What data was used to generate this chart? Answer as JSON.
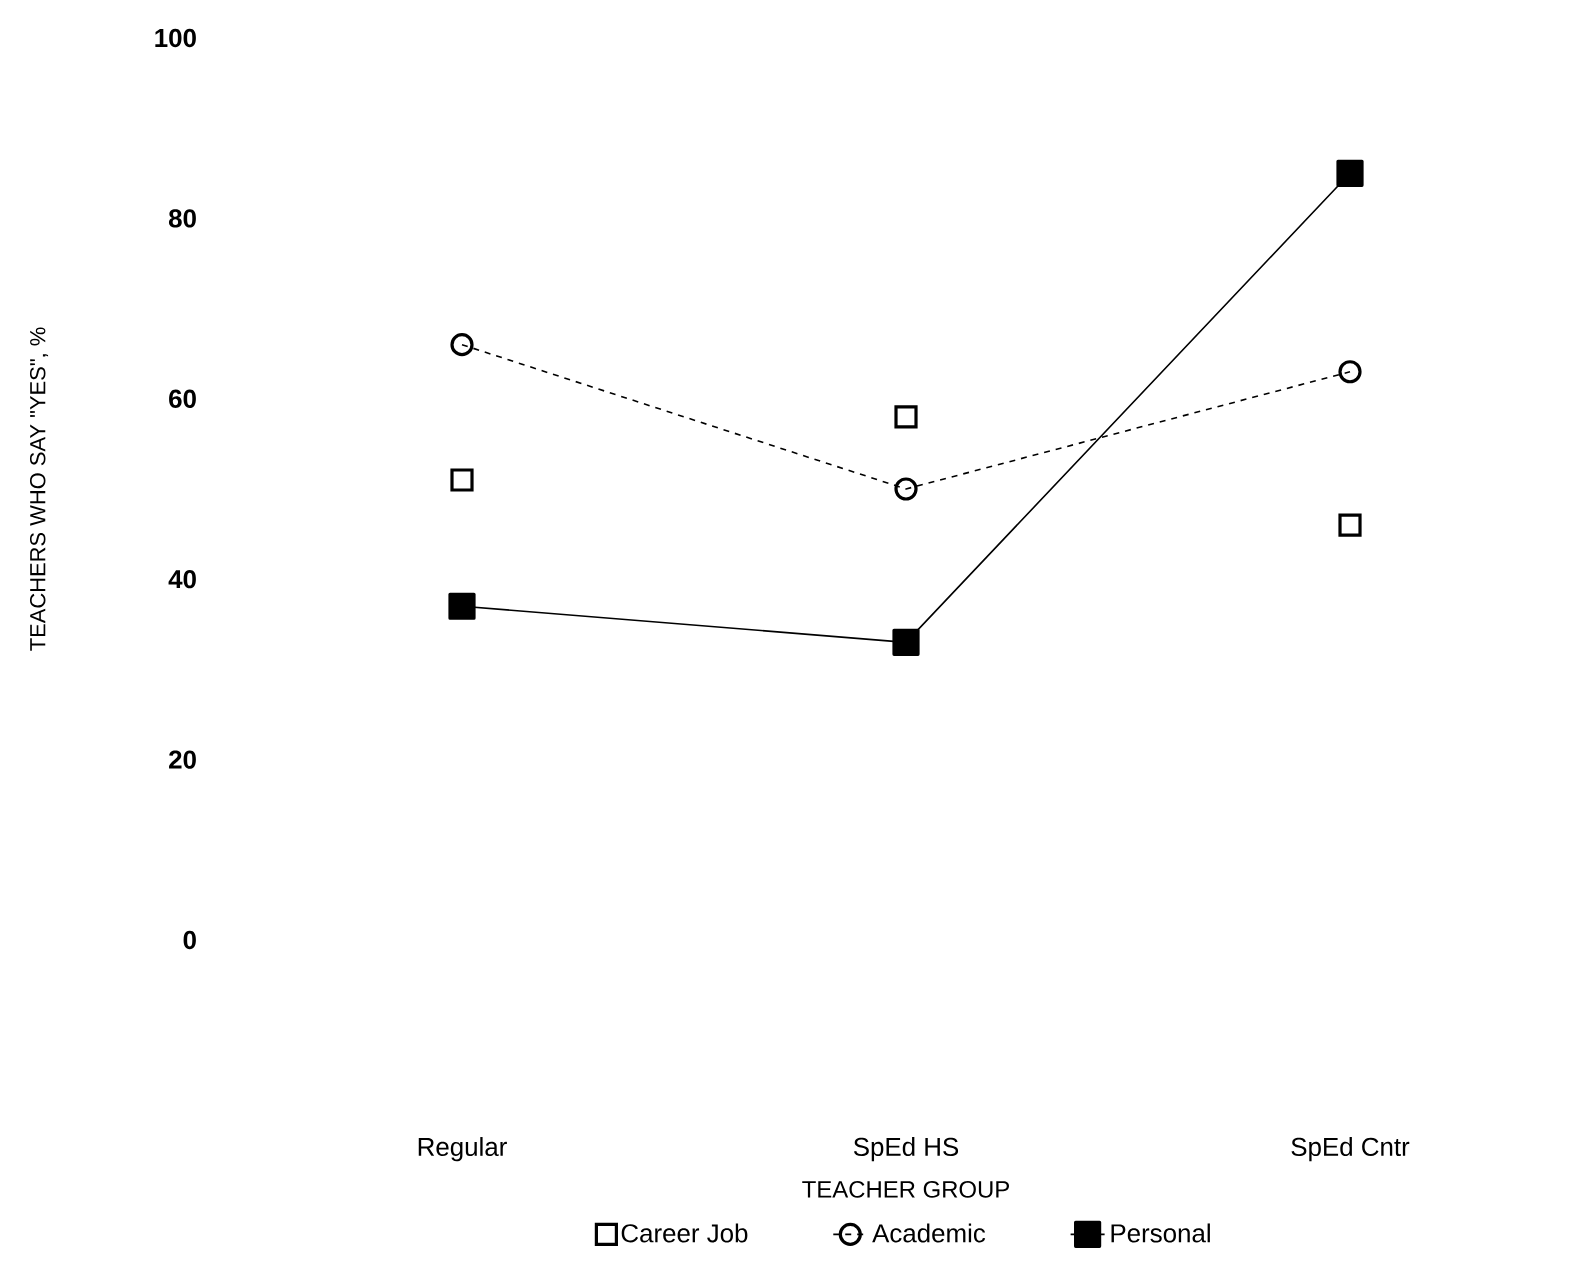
{
  "chart_data": {
    "type": "line",
    "xlabel": "TEACHER GROUP",
    "ylabel": "TEACHERS WHO SAY \"YES\", %",
    "categories": [
      "Regular",
      "SpEd HS",
      "SpEd Cntr"
    ],
    "ylim": [
      0,
      100
    ],
    "yticks": [
      0,
      20,
      40,
      60,
      80,
      100
    ],
    "legend": "bottom",
    "series": [
      {
        "name": "Career Job",
        "type": "scatter",
        "marker": "square",
        "color": "#000000",
        "values": [
          51,
          58,
          46
        ]
      },
      {
        "name": "Academic",
        "marker": "circle",
        "line_style": "dashed",
        "color": "#000000",
        "values": [
          66,
          50,
          63
        ]
      },
      {
        "name": "Personal",
        "marker": "square",
        "line_style": "solid",
        "color": "#000000",
        "values": [
          37,
          33,
          85
        ]
      }
    ]
  }
}
